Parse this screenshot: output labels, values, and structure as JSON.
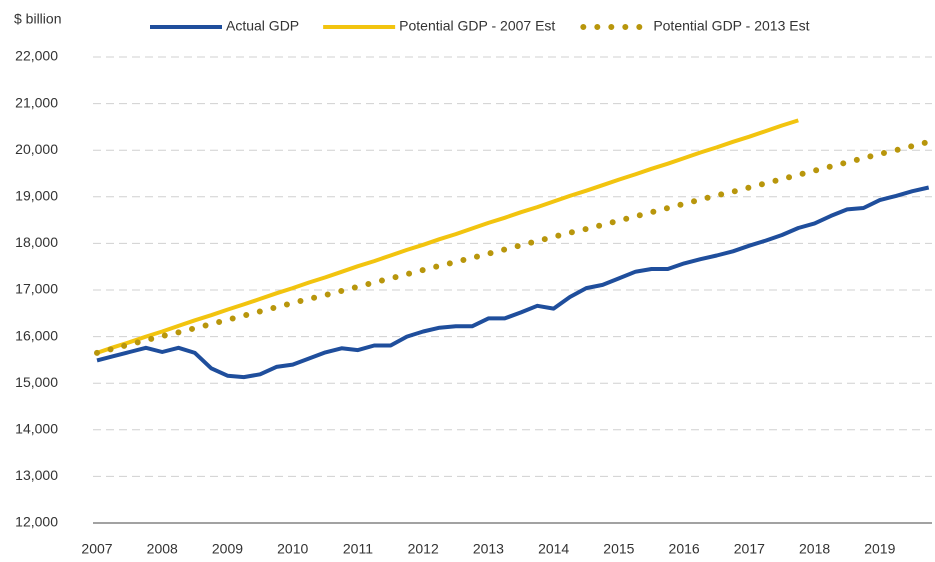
{
  "chart_data": {
    "type": "line",
    "ylabel": "$ billion",
    "x": [
      2007,
      2007.25,
      2007.5,
      2007.75,
      2008,
      2008.25,
      2008.5,
      2008.75,
      2009,
      2009.25,
      2009.5,
      2009.75,
      2010,
      2010.25,
      2010.5,
      2010.75,
      2011,
      2011.25,
      2011.5,
      2011.75,
      2012,
      2012.25,
      2012.5,
      2012.75,
      2013,
      2013.25,
      2013.5,
      2013.75,
      2014,
      2014.25,
      2014.5,
      2014.75,
      2015,
      2015.25,
      2015.5,
      2015.75,
      2016,
      2016.25,
      2016.5,
      2016.75,
      2017,
      2017.25,
      2017.5,
      2017.75,
      2018,
      2018.25,
      2018.5,
      2018.75,
      2019,
      2019.25,
      2019.5,
      2019.75
    ],
    "series": [
      {
        "name": "Actual GDP",
        "color": "#1f4e9c",
        "style": "solid",
        "values": [
          15490,
          15580,
          15670,
          15760,
          15670,
          15760,
          15650,
          15320,
          15160,
          15130,
          15190,
          15350,
          15400,
          15530,
          15660,
          15750,
          15710,
          15810,
          15810,
          16000,
          16110,
          16190,
          16220,
          16220,
          16390,
          16390,
          16520,
          16660,
          16600,
          16850,
          17040,
          17110,
          17250,
          17390,
          17450,
          17450,
          17570,
          17660,
          17740,
          17830,
          17950,
          18060,
          18180,
          18330,
          18430,
          18590,
          18730,
          18760,
          18930,
          19020,
          19120,
          19200
        ]
      },
      {
        "name": "Potential GDP - 2007 Est",
        "color": "#f2c40f",
        "style": "solid",
        "values": [
          15650,
          15770,
          15880,
          16000,
          16110,
          16230,
          16350,
          16460,
          16580,
          16690,
          16810,
          16930,
          17040,
          17160,
          17270,
          17390,
          17510,
          17620,
          17740,
          17860,
          17970,
          18090,
          18200,
          18320,
          18440,
          18550,
          18670,
          18780,
          18900,
          19020,
          19130,
          19250,
          19370,
          19480,
          19600,
          19710,
          19830,
          19950,
          20060,
          20180,
          20290,
          20410,
          20530,
          20640,
          null,
          null,
          null,
          null,
          null,
          null,
          null,
          null
        ]
      },
      {
        "name": "Potential GDP - 2013 Est",
        "color": "#b8960c",
        "style": "dotted",
        "values": [
          15650,
          15740,
          15830,
          15920,
          16010,
          16090,
          16180,
          16270,
          16360,
          16450,
          16540,
          16630,
          16720,
          16810,
          16890,
          16980,
          17070,
          17160,
          17250,
          17340,
          17430,
          17520,
          17600,
          17690,
          17780,
          17870,
          17960,
          18050,
          18140,
          18230,
          18310,
          18400,
          18490,
          18580,
          18670,
          18760,
          18850,
          18940,
          19030,
          19110,
          19200,
          19290,
          19380,
          19470,
          19560,
          19650,
          19740,
          19830,
          19920,
          20000,
          20090,
          20180
        ]
      }
    ],
    "xlim": [
      2007,
      2019.8
    ],
    "xticks": [
      2007,
      2008,
      2009,
      2010,
      2011,
      2012,
      2013,
      2014,
      2015,
      2016,
      2017,
      2018,
      2019
    ],
    "ylim": [
      12000,
      22000
    ],
    "yticks": [
      {
        "value": 12000,
        "label": "12,000"
      },
      {
        "value": 13000,
        "label": "13,000"
      },
      {
        "value": 14000,
        "label": "14,000"
      },
      {
        "value": 15000,
        "label": "15,000"
      },
      {
        "value": 16000,
        "label": "16,000"
      },
      {
        "value": 17000,
        "label": "17,000"
      },
      {
        "value": 18000,
        "label": "18,000"
      },
      {
        "value": 19000,
        "label": "19,000"
      },
      {
        "value": 20000,
        "label": "20,000"
      },
      {
        "value": 21000,
        "label": "21,000"
      },
      {
        "value": 22000,
        "label": "22,000"
      }
    ],
    "grid": true,
    "legend": "top"
  }
}
